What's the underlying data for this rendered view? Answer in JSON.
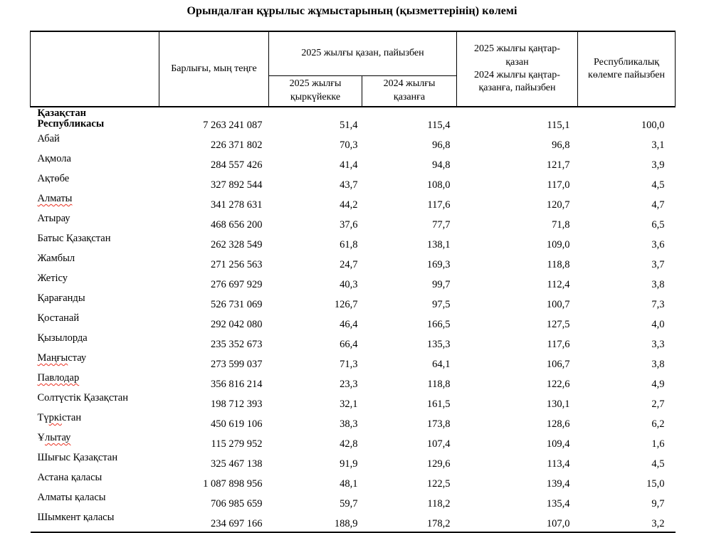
{
  "title": "Орындалған құрылыс жұмыстарының (қызметтерінің) көлемі",
  "colors": {
    "text": "#000000",
    "border": "#000000",
    "spellcheck_underline": "#eb3323"
  },
  "table": {
    "headers": {
      "region": "",
      "total": "Барлығы, мың теңге",
      "october_group": "2025 жылғы қазан, пайызбен",
      "vs_september_2025": "2025 жылғы қыркүйекке",
      "vs_october_2024": "2024 жылғы қазанға",
      "period_line1": "2025 жылғы қаңтар-қазан",
      "period_line2": "2024 жылғы қаңтар-қазанға, пайызбен",
      "republic_share": "Республикалық көлемге пайызбен"
    },
    "rows": [
      {
        "name": "Қазақстан Республикасы",
        "name_lines": [
          "Қазақстан",
          "Республикасы"
        ],
        "bold": true,
        "values": [
          "7 263 241 087",
          "51,4",
          "115,4",
          "115,1",
          "100,0"
        ]
      },
      {
        "name": "Абай",
        "values": [
          "226 371 802",
          "70,3",
          "96,8",
          "96,8",
          "3,1"
        ]
      },
      {
        "name": "Ақмола",
        "values": [
          "284 557 426",
          "41,4",
          "94,8",
          "121,7",
          "3,9"
        ]
      },
      {
        "name": "Ақтөбе",
        "values": [
          "327 892 544",
          "43,7",
          "108,0",
          "117,0",
          "4,5"
        ]
      },
      {
        "name": "Алматы",
        "name_parts": [
          {
            "t": "Алматы",
            "w": true
          }
        ],
        "values": [
          "341 278 631",
          "44,2",
          "117,6",
          "120,7",
          "4,7"
        ]
      },
      {
        "name": "Атырау",
        "values": [
          "468 656 200",
          "37,6",
          "77,7",
          "71,8",
          "6,5"
        ]
      },
      {
        "name": "Батыс Қазақстан",
        "values": [
          "262 328 549",
          "61,8",
          "138,1",
          "109,0",
          "3,6"
        ]
      },
      {
        "name": "Жамбыл",
        "values": [
          "271 256 563",
          "24,7",
          "169,3",
          "118,8",
          "3,7"
        ]
      },
      {
        "name": "Жетісу",
        "values": [
          "276 697 929",
          "40,3",
          "99,7",
          "112,4",
          "3,8"
        ]
      },
      {
        "name": "Қарағанды",
        "values": [
          "526 731 069",
          "126,7",
          "97,5",
          "100,7",
          "7,3"
        ]
      },
      {
        "name": "Қостанай",
        "values": [
          "292 042 080",
          "46,4",
          "166,5",
          "127,5",
          "4,0"
        ]
      },
      {
        "name": "Қызылорда",
        "values": [
          "235 352 673",
          "66,4",
          "135,3",
          "117,6",
          "3,3"
        ]
      },
      {
        "name": "Маңғыстау",
        "name_parts": [
          {
            "t": "Маңғы",
            "w": true
          },
          {
            "t": "стау",
            "w": false
          }
        ],
        "values": [
          "273 599 037",
          "71,3",
          "64,1",
          "106,7",
          "3,8"
        ]
      },
      {
        "name": "Павлодар",
        "name_parts": [
          {
            "t": "Павлодар",
            "w": true
          }
        ],
        "values": [
          "356 816 214",
          "23,3",
          "118,8",
          "122,6",
          "4,9"
        ]
      },
      {
        "name": "Солтүстік Қазақстан",
        "values": [
          "198 712 393",
          "32,1",
          "161,5",
          "130,1",
          "2,7"
        ]
      },
      {
        "name": "Түркістан",
        "name_parts": [
          {
            "t": "Тү",
            "w": false
          },
          {
            "t": "ркі",
            "w": true
          },
          {
            "t": "стан",
            "w": false
          }
        ],
        "values": [
          "450 619 106",
          "38,3",
          "173,8",
          "128,6",
          "6,2"
        ]
      },
      {
        "name": "Ұлытау",
        "name_parts": [
          {
            "t": "Ұ",
            "w": false
          },
          {
            "t": "лытау",
            "w": true
          }
        ],
        "values": [
          "115 279 952",
          "42,8",
          "107,4",
          "109,4",
          "1,6"
        ]
      },
      {
        "name": "Шығыс Қазақстан",
        "values": [
          "325 467 138",
          "91,9",
          "129,6",
          "113,4",
          "4,5"
        ]
      },
      {
        "name": "Астана қаласы",
        "values": [
          "1 087 898 956",
          "48,1",
          "122,5",
          "139,4",
          "15,0"
        ]
      },
      {
        "name": "Алматы қаласы",
        "values": [
          "706 985 659",
          "59,7",
          "118,2",
          "135,4",
          "9,7"
        ]
      },
      {
        "name": "Шымкент қаласы",
        "values": [
          "234 697 166",
          "188,9",
          "178,2",
          "107,0",
          "3,2"
        ]
      }
    ]
  }
}
